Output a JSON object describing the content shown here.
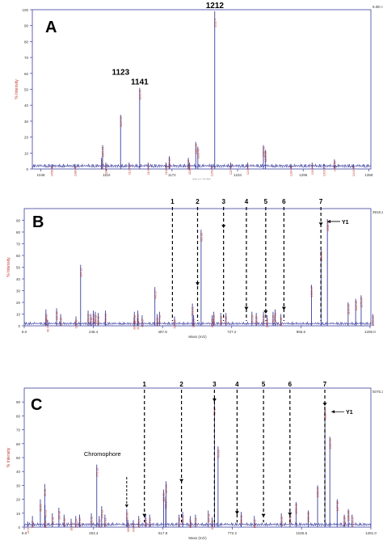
{
  "chart_data": [
    {
      "type": "line",
      "panel_letter": "A",
      "ylabel": "% Intensity",
      "xlabel": "Mass (m/z)",
      "corner_value": "9.0E+3",
      "xlim": [
        1040,
        1360
      ],
      "ylim": [
        0,
        100
      ],
      "xticks": [
        "1048",
        "1110",
        "1172",
        "1234",
        "1296",
        "1358"
      ],
      "yticks": [
        "0",
        "10",
        "20",
        "30",
        "40",
        "50",
        "60",
        "70",
        "80",
        "90",
        "100"
      ],
      "peak_callouts": [
        {
          "text": "1123",
          "x": 1123.5,
          "y": 57
        },
        {
          "text": "1141",
          "x": 1141.5,
          "y": 51
        },
        {
          "text": "1212",
          "x": 1212.5,
          "y": 99
        }
      ],
      "series": [
        {
          "x": [
            1058.44,
            1080.46,
            1105.42,
            1106.41,
            1109.42,
            1123.43,
            1131.45,
            1141.45,
            1149.46,
            1169.42,
            1166.44,
            1187.44,
            1188.46,
            1196.45,
            1194.45,
            1209.44,
            1212.4,
            1227.46,
            1243.44,
            1258.42,
            1260.43,
            1284.45,
            1304.46,
            1315.7,
            1325.56,
            1343.44
          ],
          "y": [
            3,
            3,
            7,
            15,
            4,
            34,
            4,
            51,
            4,
            8,
            4,
            7,
            4,
            14,
            17,
            3,
            99,
            4,
            4,
            15,
            12,
            3,
            4,
            3,
            6,
            3
          ]
        }
      ],
      "peak_labels": [
        "1058.44",
        "1080.46",
        "1105.42",
        "1106.41",
        "1109.42",
        "1123.43",
        "1131.45",
        "1141.45",
        "1149.46",
        "1169.42",
        "1166.44",
        "1187.44",
        "1188.46",
        "1196.45",
        "1194.45",
        "1209.44",
        "1212.4",
        "1227.46",
        "1243.44",
        "1258.42",
        "1260.43",
        "1284.45",
        "1304.46",
        "1315.7",
        "1325.56",
        "1343.44"
      ]
    },
    {
      "type": "line",
      "panel_letter": "B",
      "ylabel": "% Intensity",
      "xlabel": "Mass (m/z)",
      "corner_value": "3916.2",
      "xlim": [
        9,
        1209
      ],
      "ylim": [
        0,
        100
      ],
      "xticks": [
        "9.0",
        "248.4",
        "487.8",
        "727.2",
        "966.6",
        "1206.0"
      ],
      "yticks": [
        "0",
        "10",
        "20",
        "30",
        "40",
        "50",
        "60",
        "70",
        "80",
        "90"
      ],
      "fragment_markers": [
        {
          "text": "1",
          "x": 522
        },
        {
          "text": "2",
          "x": 609
        },
        {
          "text": "3",
          "x": 699
        },
        {
          "text": "4",
          "x": 778
        },
        {
          "text": "5",
          "x": 845
        },
        {
          "text": "6",
          "x": 908
        },
        {
          "text": "7",
          "x": 1036
        }
      ],
      "arrow_peaks": [
        {
          "x": 609,
          "y": 33
        },
        {
          "x": 699,
          "y": 82
        },
        {
          "x": 778,
          "y": 12
        },
        {
          "x": 845,
          "y": 9
        },
        {
          "x": 908,
          "y": 12
        },
        {
          "x": 1036,
          "y": 84
        }
      ],
      "y1_marker": {
        "text": "Y1",
        "x": 1058,
        "y": 89
      },
      "series": [
        {
          "x": [
            84.06,
            84.11,
            90.07,
            121.06,
            135.1,
            188.06,
            204.11,
            230.12,
            239.12,
            248.13,
            255.12,
            265.12,
            290.13,
            389.1,
            390.12,
            401.15,
            402.24,
            417.17,
            461.27,
            469.04,
            477.14,
            529.25,
            591.21,
            595.21,
            621.28,
            659.28,
            665.28,
            689.26,
            707.29,
            797.29,
            812.2,
            837.18,
            849.36,
            870.35,
            877.39,
            897.48,
            1003.47,
            1036.44,
            1058.45,
            1130.3,
            1156.36,
            1175.37,
            1215.4
          ],
          "y": [
            11,
            14,
            5,
            15,
            10,
            8,
            52,
            13,
            10,
            13,
            12,
            11,
            13,
            7,
            12,
            7,
            13,
            9,
            33,
            10,
            12,
            8,
            19,
            9,
            82,
            9,
            12,
            11,
            11,
            12,
            11,
            12,
            9,
            12,
            14,
            10,
            35,
            65,
            91,
            20,
            23,
            26,
            10
          ]
        }
      ],
      "peak_labels": [
        "84.06",
        "84.11",
        "90.07",
        "121.06",
        "135.10",
        "188.06",
        "204.11",
        "230.12",
        "239.12",
        "248.13",
        "255.12",
        "265.12",
        "290.13",
        "389.10",
        "390.12",
        "401.15",
        "402.24",
        "417.17",
        "461.27",
        "469.04",
        "477.14",
        "529.25",
        "591.21",
        "595.21",
        "621.28",
        "659.28",
        "665.28",
        "689.26",
        "707.29",
        "797.29",
        "812.20",
        "837.18",
        "849.36",
        "870.35",
        "877.39",
        "897.48",
        "1003.47",
        "1036.44",
        "1058.45",
        "1130.30",
        "1156.36",
        "1175.37",
        "1215.40"
      ]
    },
    {
      "type": "line",
      "panel_letter": "C",
      "ylabel": "% Intensity",
      "xlabel": "Mass (m/z)",
      "corner_value": "5075.3",
      "xlim": [
        9,
        1281
      ],
      "ylim": [
        0,
        100
      ],
      "xticks": [
        "9.0",
        "263.4",
        "517.8",
        "772.2",
        "1026.6",
        "1281.0"
      ],
      "yticks": [
        "0",
        "10",
        "20",
        "30",
        "40",
        "50",
        "60",
        "70",
        "80",
        "90"
      ],
      "fragment_markers": [
        {
          "text": "1",
          "x": 450
        },
        {
          "text": "2",
          "x": 586
        },
        {
          "text": "3",
          "x": 707
        },
        {
          "text": "4",
          "x": 790
        },
        {
          "text": "5",
          "x": 887
        },
        {
          "text": "6",
          "x": 984
        },
        {
          "text": "7",
          "x": 1112
        }
      ],
      "arrow_peaks": [
        {
          "x": 450,
          "y": 6
        },
        {
          "x": 586,
          "y": 31
        },
        {
          "x": 707,
          "y": 89
        },
        {
          "x": 790,
          "y": 8
        },
        {
          "x": 887,
          "y": 6
        },
        {
          "x": 984,
          "y": 7
        },
        {
          "x": 1112,
          "y": 86
        }
      ],
      "chromophore_callout": {
        "text": "Chromophore",
        "x": 385
      },
      "y1_marker": {
        "text": "Y1",
        "x": 1136,
        "y": 83
      },
      "series": [
        {
          "x": [
            22.07,
            39.07,
            68.09,
            84.11,
            85.11,
            86.09,
            112.11,
            136.12,
            155.1,
            181.09,
            198.13,
            212.1,
            255.12,
            275.12,
            284.09,
            293.11,
            305.12,
            385.16,
            389.15,
            409.15,
            429.15,
            454.17,
            469.15,
            520.25,
            528.24,
            529.23,
            577.22,
            590.23,
            618.27,
            637.31,
            684.32,
            698.31,
            707.27,
            720.26,
            805.31,
            853.21,
            952.35,
            984.3,
            1006.43,
            1051.33,
            1085.44,
            1112.4,
            1130.33,
            1157.38,
            1183.38,
            1198.36,
            1212.17
          ],
          "y": [
            4,
            8,
            20,
            31,
            16,
            8,
            10,
            14,
            9,
            6,
            8,
            9,
            10,
            45,
            8,
            15,
            9,
            13,
            5,
            5,
            8,
            9,
            9,
            27,
            22,
            33,
            9,
            11,
            8,
            9,
            12,
            7,
            89,
            58,
            11,
            8,
            10,
            11,
            18,
            12,
            30,
            86,
            65,
            20,
            9,
            13,
            9
          ]
        }
      ],
      "peak_labels": [
        "22.07",
        "39.07",
        "68.09",
        "84.11",
        "85.11",
        "86.09",
        "112.11",
        "136.12",
        "155.10",
        "181.09",
        "198.13",
        "212.10",
        "255.12",
        "275.12",
        "284.09",
        "293.11",
        "305.12",
        "385.16",
        "389.15",
        "409.15",
        "429.15",
        "454.17",
        "469.15",
        "520.25",
        "528.24",
        "529.23",
        "577.22",
        "590.23",
        "618.27",
        "637.31",
        "684.32",
        "698.31",
        "707.27",
        "720.26",
        "805.31",
        "853.21",
        "952.35",
        "984.30",
        "1006.43",
        "1051.33",
        "1085.44",
        "1112.40",
        "1130.33",
        "1157.38",
        "1183.38",
        "1198.36",
        "1212.17"
      ]
    }
  ],
  "colors": {
    "trace": "#3b3f9e",
    "axis": "#3b3f9e",
    "peak_label": "#c0392b",
    "annotation": "#000000"
  }
}
